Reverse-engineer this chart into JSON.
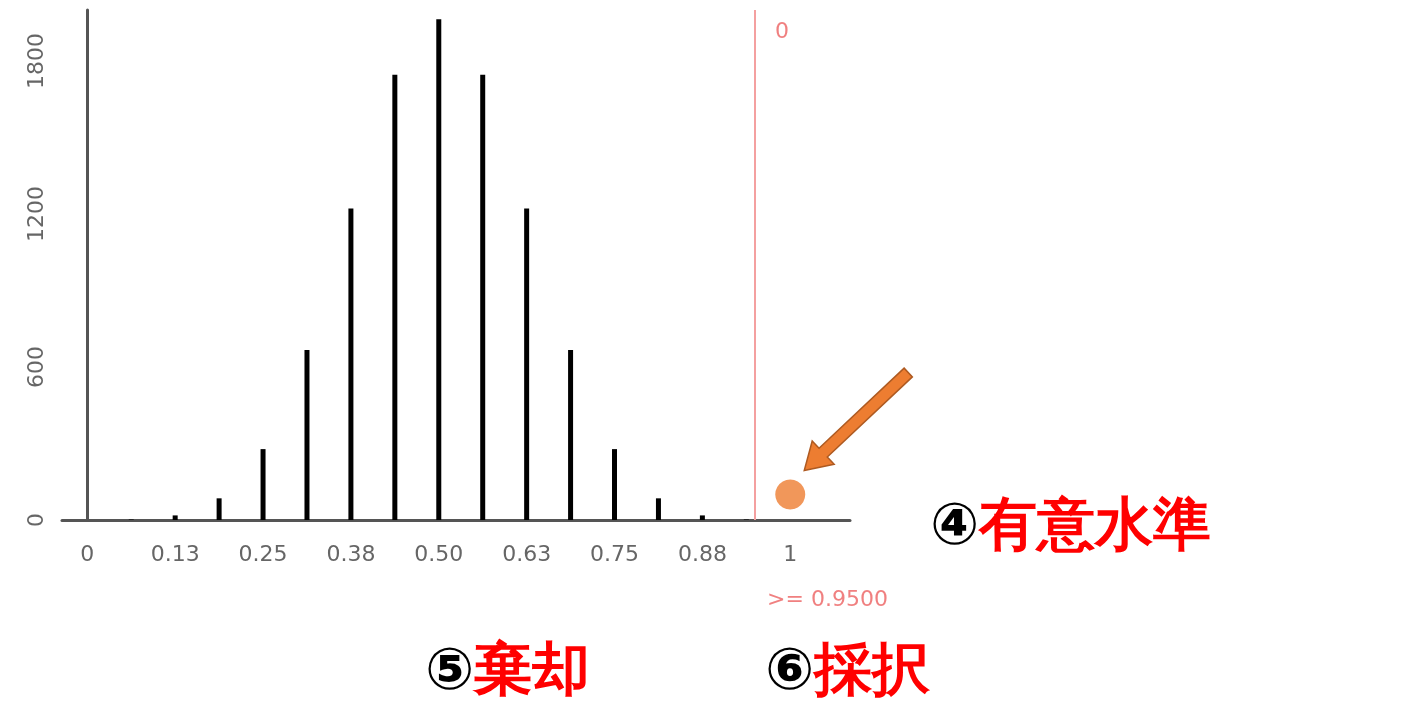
{
  "chart_data": {
    "type": "bar",
    "series": [
      {
        "color": "#000000",
        "x": [
          0,
          0.0625,
          0.125,
          0.1875,
          0.25,
          0.3125,
          0.375,
          0.4375,
          0.5,
          0.5625,
          0.625,
          0.6875,
          0.75,
          0.8125,
          0.875,
          0.9375,
          1
        ],
        "values": [
          0,
          2,
          18,
          85,
          278,
          667,
          1222,
          1746,
          1964,
          1746,
          1222,
          667,
          278,
          85,
          18,
          2,
          0
        ]
      },
      {
        "type": "scatter",
        "color": "#ed7d31",
        "marker": "circle",
        "x": [
          1
        ],
        "values": [
          100
        ]
      }
    ],
    "xlim": [
      -0.036,
      1.085
    ],
    "xticks": [
      0,
      {
        "value": 0.125,
        "label": "0.13"
      },
      0.25,
      {
        "value": 0.375,
        "label": "0.38"
      },
      {
        "value": 0.5,
        "label": "0.50"
      },
      {
        "value": 0.625,
        "label": "0.63"
      },
      0.75,
      {
        "value": 0.875,
        "label": "0.88"
      },
      1
    ],
    "ylim": [
      0,
      2000
    ],
    "yticks": [
      0,
      600,
      1200,
      1800
    ],
    "grid": false,
    "ref_lines": [
      {
        "axis": "x",
        "value": 0.95,
        "label": ">= 0.9500",
        "color": "#f4a0a0"
      }
    ],
    "annotations": [
      {
        "text": "0",
        "x": 0.95,
        "y": 2000
      },
      "④有意水準",
      "⑤棄却",
      "⑥採択"
    ]
  }
}
